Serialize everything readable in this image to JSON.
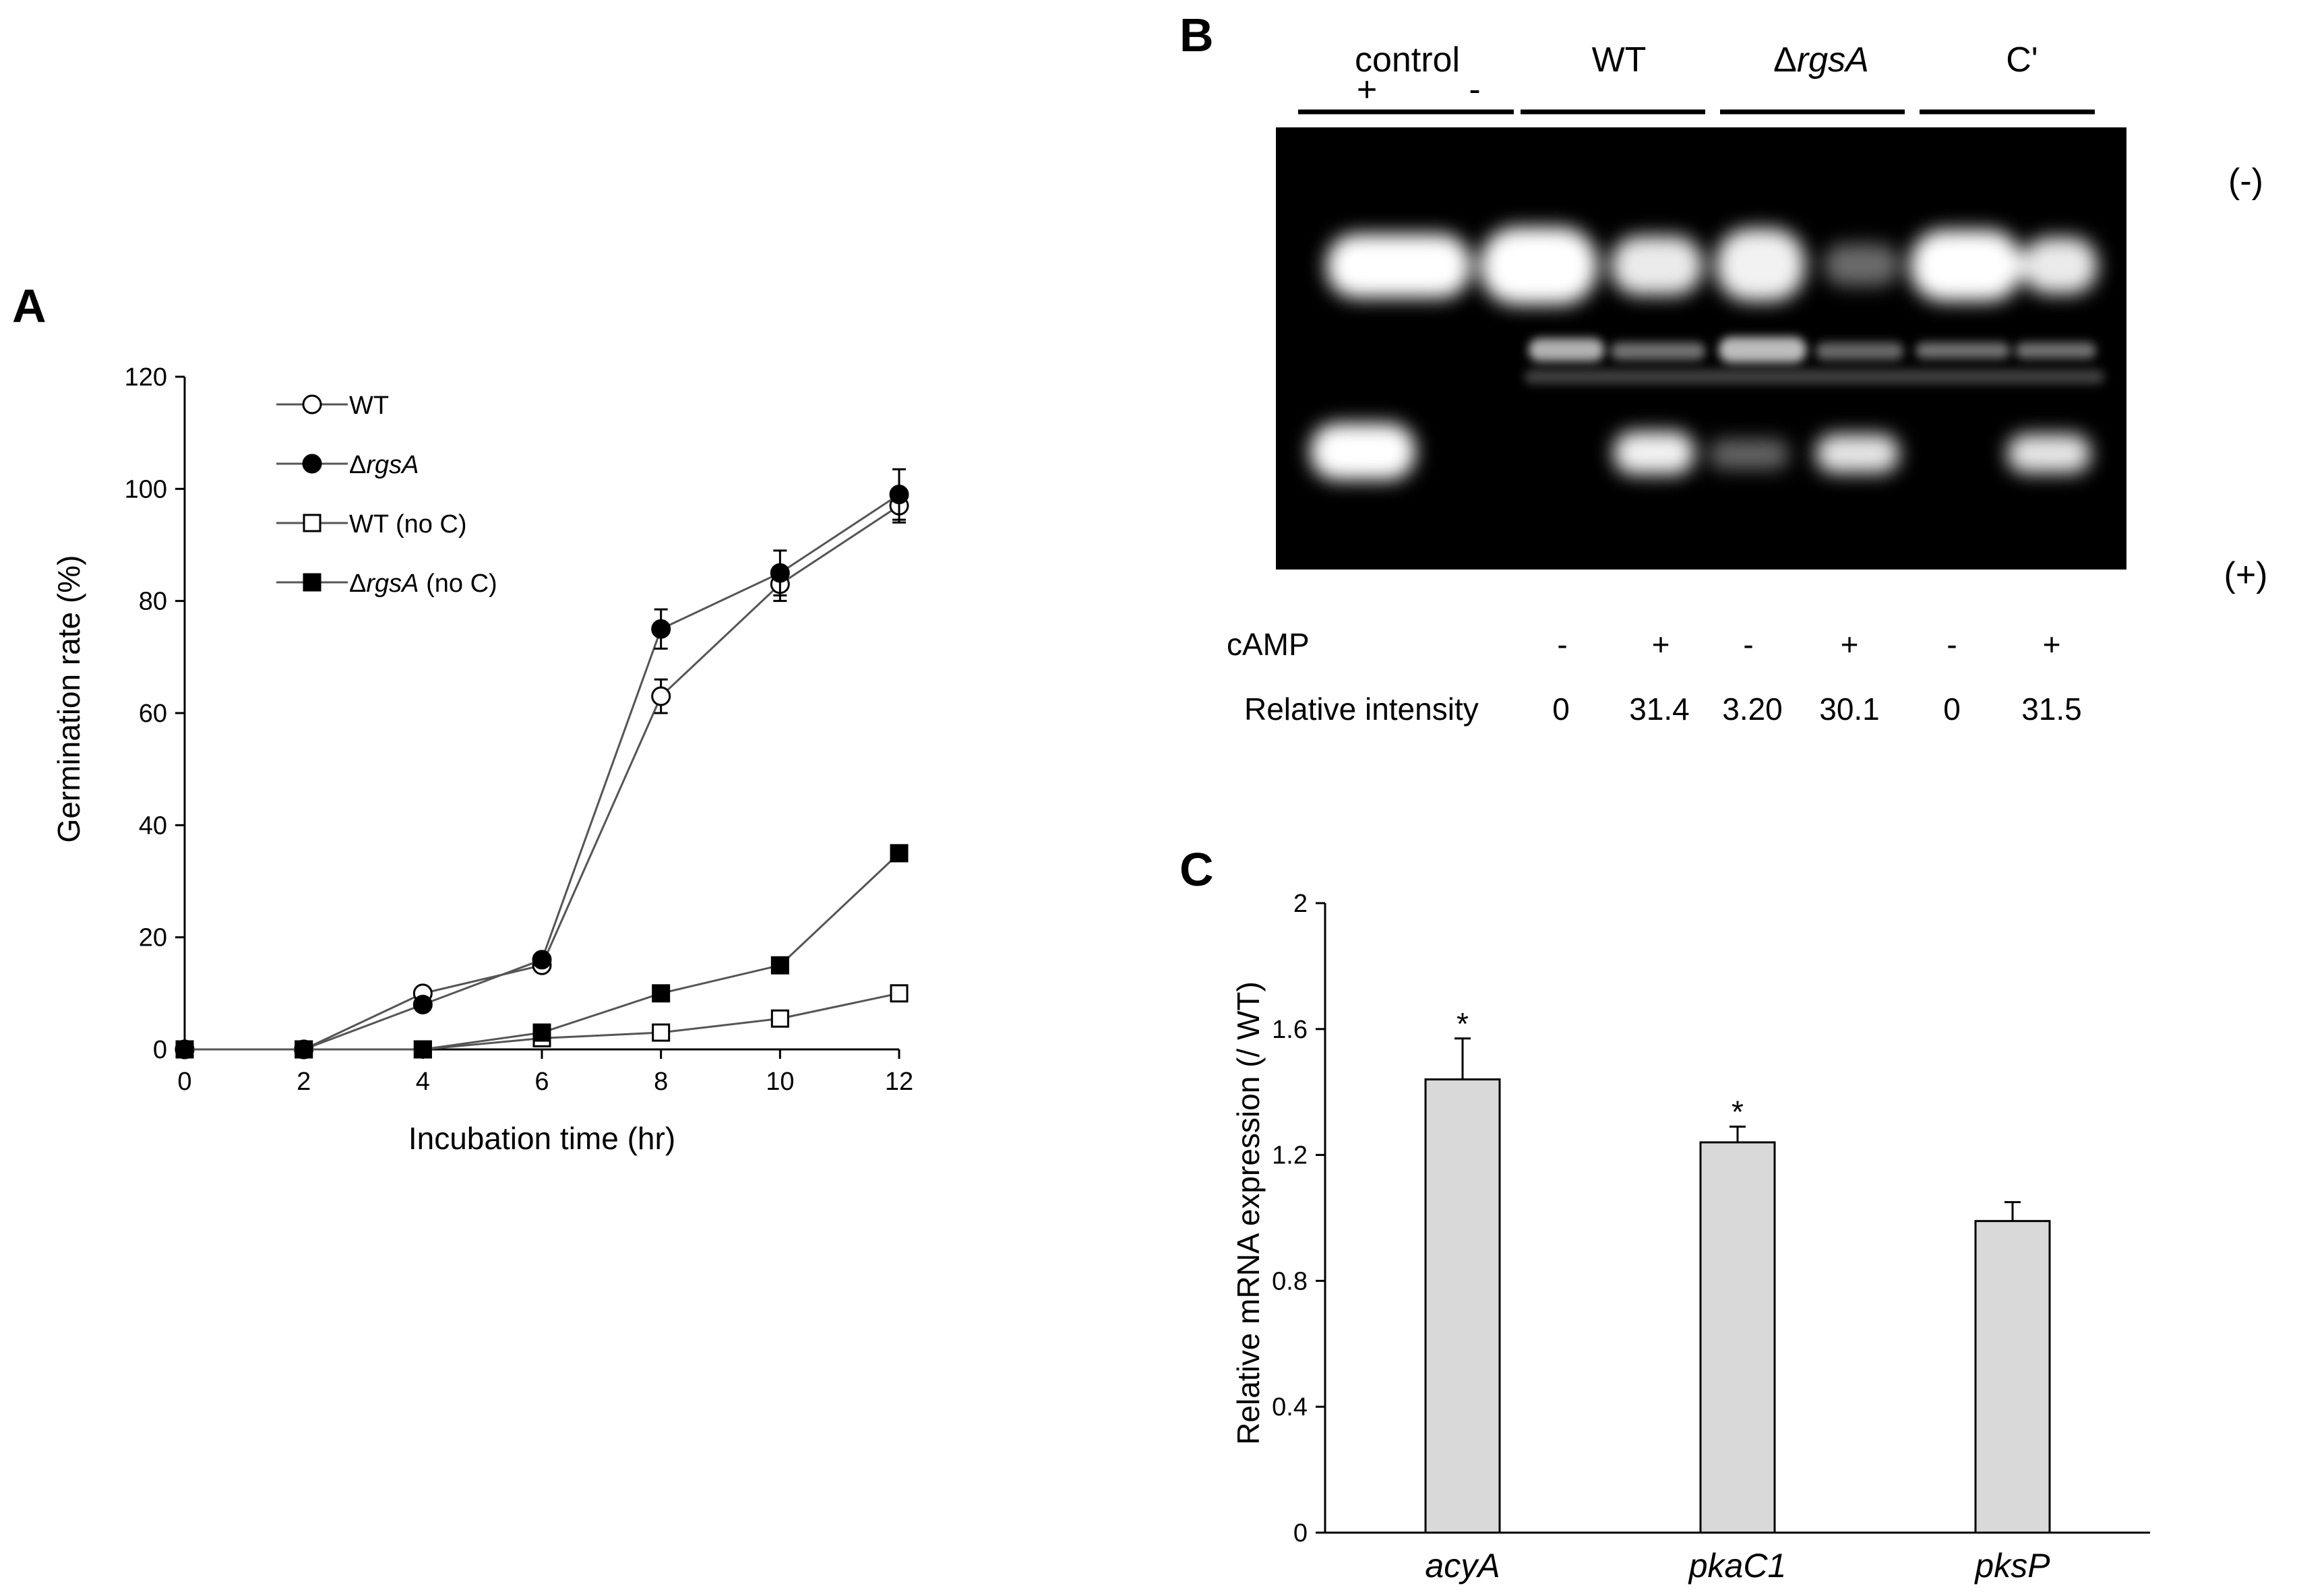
{
  "panels": {
    "a": {
      "label": "A"
    },
    "b": {
      "label": "B"
    },
    "c": {
      "label": "C"
    }
  },
  "chart_data": [
    {
      "type": "line",
      "panel": "A",
      "title": "",
      "xlabel": "Incubation time (hr)",
      "ylabel": "Germination rate  (%)",
      "xlim": [
        0,
        12
      ],
      "ylim": [
        0,
        120
      ],
      "xticks": [
        "0",
        "2",
        "4",
        "6",
        "8",
        "10",
        "12"
      ],
      "yticks": [
        "0",
        "20",
        "40",
        "60",
        "80",
        "100",
        "120"
      ],
      "x": [
        0,
        2,
        4,
        6,
        8,
        10,
        12
      ],
      "legend_position": "top-left",
      "grid": false,
      "series": [
        {
          "name": "WT",
          "legend_prefix": "",
          "legend_italic": "",
          "legend_suffix": "WT",
          "marker": "open-circle",
          "values": [
            0,
            0,
            10,
            15,
            63,
            83,
            97
          ],
          "error": [
            0,
            0,
            0,
            0,
            3,
            3,
            3
          ]
        },
        {
          "name": "ΔrgsA",
          "legend_prefix": "Δ",
          "legend_italic": "rgsA",
          "legend_suffix": "",
          "marker": "filled-circle",
          "values": [
            0,
            0,
            8,
            16,
            75,
            85,
            99
          ],
          "error": [
            0,
            0,
            0,
            0,
            3.5,
            4,
            4.5
          ]
        },
        {
          "name": "WT (no C)",
          "legend_prefix": "",
          "legend_italic": "",
          "legend_suffix": "WT (no C)",
          "marker": "open-square",
          "values": [
            0,
            0,
            0,
            2,
            3,
            5.5,
            10
          ],
          "error": [
            0,
            0,
            0,
            0,
            0,
            0,
            0
          ]
        },
        {
          "name": "ΔrgsA (no C)",
          "legend_prefix": "Δ",
          "legend_italic": "rgsA",
          "legend_suffix": " (no C)",
          "marker": "filled-square",
          "values": [
            0,
            0,
            0,
            3,
            10,
            15,
            35
          ],
          "error": [
            0,
            0,
            0,
            0,
            0,
            0,
            1
          ]
        }
      ]
    },
    {
      "type": "bar",
      "panel": "C",
      "title": "",
      "xlabel": "",
      "ylabel": "Relative mRNA expression (/ WT)",
      "ylim": [
        0,
        2
      ],
      "yticks": [
        "0",
        "0.4",
        "0.8",
        "1.2",
        "1.6",
        "2"
      ],
      "categories": [
        "acyA",
        "pkaC1",
        "pksP"
      ],
      "values": [
        1.44,
        1.24,
        0.99
      ],
      "error": [
        0.13,
        0.05,
        0.06
      ],
      "significance": [
        "*",
        "*",
        ""
      ],
      "bar_color": "#d9d9d9"
    }
  ],
  "gel": {
    "groups": [
      {
        "prefix": "",
        "italic": "",
        "suffix": "control"
      },
      {
        "prefix": "",
        "italic": "",
        "suffix": "WT"
      },
      {
        "prefix": "Δ",
        "italic": "rgsA",
        "suffix": ""
      },
      {
        "prefix": "",
        "italic": "",
        "suffix": "C'"
      }
    ],
    "control_signs": [
      "+",
      "-"
    ],
    "polarity_top": "(-)",
    "polarity_bottom": "(+)",
    "camp_label": "cAMP",
    "camp_values": [
      "-",
      "+",
      "-",
      "+",
      "-",
      "+"
    ],
    "intensity_label": "Relative  intensity",
    "intensity_values": [
      "0",
      "31.4",
      "3.20",
      "30.1",
      "0",
      "31.5"
    ]
  }
}
